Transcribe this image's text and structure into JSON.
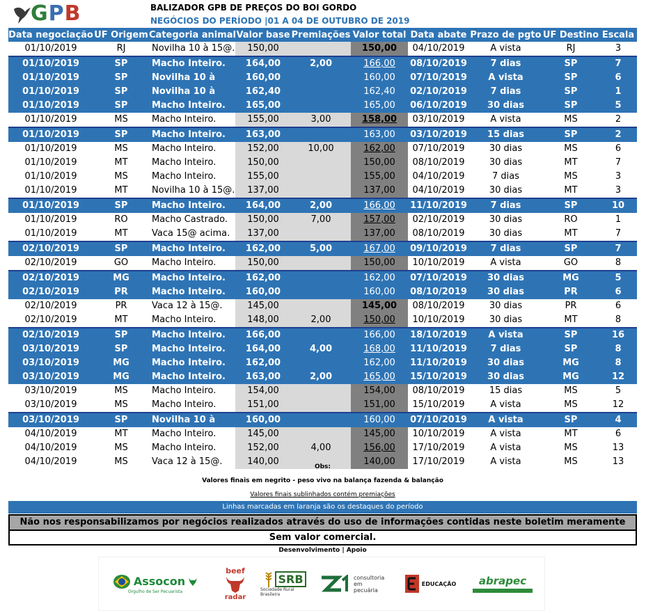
{
  "header": {
    "logo_text": "GPB",
    "title": "BALIZADOR GPB DE PREÇOS DO BOI GORDO",
    "subtitle": "NEGÓCIOS DO PERÍODO |01 A 04 DE OUTUBRO DE 2019"
  },
  "columns": [
    "Data negociação",
    "UF Origem",
    "Categoria animal",
    "Valor base",
    "Premiações",
    "Valor total",
    "Data abate",
    "Prazo de pgto",
    "UF Destino",
    "Escala"
  ],
  "rows": [
    {
      "hl": false,
      "c": [
        "01/10/2019",
        "RJ",
        "Novilha 10 à 15@.",
        "150,00",
        "",
        "150,00",
        "04/10/2019",
        "A vista",
        "RJ",
        "3"
      ],
      "bold_total": true,
      "under_total": false
    },
    {
      "hl": true,
      "c": [
        "01/10/2019",
        "SP",
        "Macho Inteiro.",
        "164,00",
        "2,00",
        "166,00",
        "08/10/2019",
        "7 dias",
        "SP",
        "7"
      ],
      "bold_total": false,
      "under_total": true
    },
    {
      "hl": true,
      "c": [
        "01/10/2019",
        "SP",
        "Novilha 10 à",
        "160,00",
        "",
        "160,00",
        "07/10/2019",
        "A vista",
        "SP",
        "6"
      ],
      "bold_total": true,
      "under_total": false
    },
    {
      "hl": true,
      "c": [
        "01/10/2019",
        "SP",
        "Novilha 10 à",
        "162,40",
        "",
        "162,40",
        "02/10/2019",
        "7 dias",
        "SP",
        "1"
      ],
      "bold_total": true,
      "under_total": false
    },
    {
      "hl": true,
      "c": [
        "01/10/2019",
        "SP",
        "Macho Inteiro.",
        "165,00",
        "",
        "165,00",
        "06/10/2019",
        "30 dias",
        "SP",
        "5"
      ],
      "bold_total": false,
      "under_total": false
    },
    {
      "hl": false,
      "c": [
        "01/10/2019",
        "MS",
        "Macho Inteiro.",
        "155,00",
        "3,00",
        "158,00",
        "03/10/2019",
        "A vista",
        "MS",
        "2"
      ],
      "bold_total": true,
      "under_total": true
    },
    {
      "hl": true,
      "c": [
        "01/10/2019",
        "SP",
        "Macho Inteiro.",
        "163,00",
        "",
        "163,00",
        "03/10/2019",
        "15 dias",
        "SP",
        "2"
      ],
      "bold_total": false,
      "under_total": false
    },
    {
      "hl": false,
      "c": [
        "01/10/2019",
        "MS",
        "Macho Inteiro.",
        "152,00",
        "10,00",
        "162,00",
        "07/10/2019",
        "30 dias",
        "MS",
        "6"
      ],
      "bold_total": false,
      "under_total": true
    },
    {
      "hl": false,
      "c": [
        "01/10/2019",
        "MT",
        "Macho Inteiro.",
        "150,00",
        "",
        "150,00",
        "08/10/2019",
        "30 dias",
        "MT",
        "7"
      ],
      "bold_total": false,
      "under_total": false
    },
    {
      "hl": false,
      "c": [
        "01/10/2019",
        "MS",
        "Macho Inteiro.",
        "155,00",
        "",
        "155,00",
        "04/10/2019",
        "7 dias",
        "MS",
        "3"
      ],
      "bold_total": false,
      "under_total": false
    },
    {
      "hl": false,
      "c": [
        "01/10/2019",
        "MT",
        "Novilha 10 à 15@.",
        "137,00",
        "",
        "137,00",
        "04/10/2019",
        "30 dias",
        "MT",
        "3"
      ],
      "bold_total": false,
      "under_total": false
    },
    {
      "hl": true,
      "c": [
        "01/10/2019",
        "SP",
        "Macho Inteiro.",
        "164,00",
        "2,00",
        "166,00",
        "11/10/2019",
        "7 dias",
        "SP",
        "10"
      ],
      "bold_total": false,
      "under_total": true
    },
    {
      "hl": false,
      "c": [
        "01/10/2019",
        "RO",
        "Macho Castrado.",
        "150,00",
        "7,00",
        "157,00",
        "02/10/2019",
        "30 dias",
        "RO",
        "1"
      ],
      "bold_total": false,
      "under_total": true
    },
    {
      "hl": false,
      "c": [
        "01/10/2019",
        "MT",
        "Vaca 15@ acima.",
        "137,00",
        "",
        "137,00",
        "08/10/2019",
        "30 dias",
        "MT",
        "7"
      ],
      "bold_total": false,
      "under_total": false
    },
    {
      "hl": true,
      "c": [
        "02/10/2019",
        "SP",
        "Macho Inteiro.",
        "162,00",
        "5,00",
        "167,00",
        "09/10/2019",
        "7 dias",
        "SP",
        "7"
      ],
      "bold_total": false,
      "under_total": true
    },
    {
      "hl": false,
      "c": [
        "02/10/2019",
        "GO",
        "Macho Inteiro.",
        "150,00",
        "",
        "150,00",
        "10/10/2019",
        "A vista",
        "GO",
        "8"
      ],
      "bold_total": false,
      "under_total": false
    },
    {
      "hl": true,
      "c": [
        "02/10/2019",
        "MG",
        "Macho Inteiro.",
        "162,00",
        "",
        "162,00",
        "07/10/2019",
        "30 dias",
        "MG",
        "5"
      ],
      "bold_total": false,
      "under_total": false
    },
    {
      "hl": true,
      "c": [
        "02/10/2019",
        "PR",
        "Macho Inteiro.",
        "160,00",
        "",
        "160,00",
        "08/10/2019",
        "30 dias",
        "PR",
        "6"
      ],
      "bold_total": true,
      "under_total": false
    },
    {
      "hl": false,
      "c": [
        "02/10/2019",
        "PR",
        "Vaca 12 à 15@.",
        "145,00",
        "",
        "145,00",
        "08/10/2019",
        "30 dias",
        "PR",
        "6"
      ],
      "bold_total": true,
      "under_total": false
    },
    {
      "hl": false,
      "c": [
        "02/10/2019",
        "MT",
        "Macho Inteiro.",
        "148,00",
        "2,00",
        "150,00",
        "10/10/2019",
        "30 dias",
        "MT",
        "8"
      ],
      "bold_total": false,
      "under_total": true
    },
    {
      "hl": true,
      "c": [
        "02/10/2019",
        "SP",
        "Macho Inteiro.",
        "166,00",
        "",
        "166,00",
        "18/10/2019",
        "A vista",
        "SP",
        "16"
      ],
      "bold_total": true,
      "under_total": false
    },
    {
      "hl": true,
      "c": [
        "03/10/2019",
        "SP",
        "Macho Inteiro.",
        "164,00",
        "4,00",
        "168,00",
        "11/10/2019",
        "7 dias",
        "SP",
        "8"
      ],
      "bold_total": false,
      "under_total": true
    },
    {
      "hl": true,
      "c": [
        "03/10/2019",
        "MG",
        "Macho Inteiro.",
        "162,00",
        "",
        "162,00",
        "11/10/2019",
        "30 dias",
        "MG",
        "8"
      ],
      "bold_total": false,
      "under_total": false
    },
    {
      "hl": true,
      "c": [
        "03/10/2019",
        "MG",
        "Macho Inteiro.",
        "163,00",
        "2,00",
        "165,00",
        "15/10/2019",
        "30 dias",
        "MG",
        "12"
      ],
      "bold_total": false,
      "under_total": true
    },
    {
      "hl": false,
      "c": [
        "03/10/2019",
        "MS",
        "Macho Inteiro.",
        "154,00",
        "",
        "154,00",
        "08/10/2019",
        "15 dias",
        "MS",
        "5"
      ],
      "bold_total": false,
      "under_total": false
    },
    {
      "hl": false,
      "c": [
        "03/10/2019",
        "MS",
        "Macho Inteiro.",
        "151,00",
        "",
        "151,00",
        "15/10/2019",
        "A vista",
        "MS",
        "12"
      ],
      "bold_total": false,
      "under_total": false
    },
    {
      "hl": true,
      "c": [
        "03/10/2019",
        "SP",
        "Novilha 10 à",
        "160,00",
        "",
        "160,00",
        "07/10/2019",
        "A vista",
        "SP",
        "4"
      ],
      "bold_total": true,
      "under_total": false
    },
    {
      "hl": false,
      "c": [
        "04/10/2019",
        "MT",
        "Macho Inteiro.",
        "145,00",
        "",
        "145,00",
        "10/10/2019",
        "A vista",
        "MT",
        "6"
      ],
      "bold_total": false,
      "under_total": false
    },
    {
      "hl": false,
      "c": [
        "04/10/2019",
        "MS",
        "Macho Inteiro.",
        "152,00",
        "4,00",
        "156,00",
        "17/10/2019",
        "A vista",
        "MS",
        "13"
      ],
      "bold_total": false,
      "under_total": true
    },
    {
      "hl": false,
      "c": [
        "04/10/2019",
        "MS",
        "Vaca 12 à 15@.",
        "140,00",
        "",
        "140,00",
        "17/10/2019",
        "A vista",
        "MS",
        "13"
      ],
      "bold_total": false,
      "under_total": false
    }
  ],
  "notes": {
    "obs": "Obs:",
    "bold_note": "Valores finais em negrito - peso vivo na balança fazenda & balanção",
    "underline_note": "Valores finais sublinhados contém premiações",
    "orange_note": "Linhas marcadas em laranja são os destaques do período",
    "disclaimer": "Não nos responsabilizamos por negócios realizados através do uso de informações contidas neste boletim meramente informativo.",
    "no_value": "Sem valor comercial.",
    "dev": "Desenvolvimento | Apoio"
  },
  "sponsors": {
    "assocon": "Assocon",
    "assocon_sub": "Orgulho de Ser Pecuarista",
    "beef_top": "beef",
    "beef_bottom": "radar",
    "srb": "SRB",
    "srb_sub": "Sociedade Rural Brasileira",
    "z1_sub": "consultoria em pecuária",
    "e_sub": "EDUCAÇÃO",
    "abrapec": "abrapec"
  },
  "colors": {
    "highlight": "#2e74b5",
    "gray_light": "#d9d9d9",
    "gray_dark": "#808080"
  }
}
